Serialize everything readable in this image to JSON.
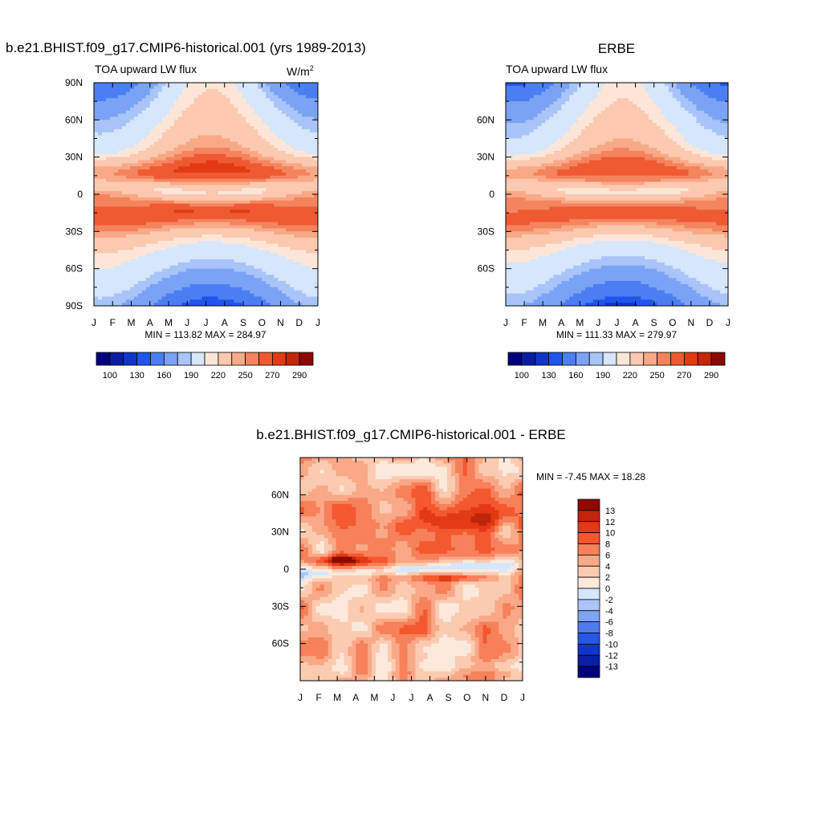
{
  "chart_data": [
    {
      "type": "heatmap",
      "panel": "model",
      "title": "b.e21.BHIST.f09_g17.CMIP6-historical.001 (yrs 1989-2013)",
      "left_label": "TOA upward LW flux",
      "units_base": "W/m",
      "units_exp": "2",
      "min_max": "MIN = 113.82 MAX = 284.97",
      "x_ticks": [
        "J",
        "F",
        "M",
        "A",
        "M",
        "J",
        "J",
        "A",
        "S",
        "O",
        "N",
        "D",
        "J"
      ],
      "y_ticks": [
        "90N",
        "60N",
        "30N",
        "0",
        "30S",
        "60S",
        "90S"
      ],
      "y_range": [
        -90,
        90
      ],
      "colorbar_labels": [
        "100",
        "130",
        "160",
        "190",
        "220",
        "250",
        "270",
        "290"
      ],
      "colorbar_levels": [
        100,
        110,
        130,
        140,
        160,
        180,
        190,
        210,
        220,
        240,
        250,
        260,
        270,
        280,
        290
      ],
      "zonal_mean_profile": [
        {
          "lat": 90,
          "value": 150
        },
        {
          "lat": 60,
          "value": 205
        },
        {
          "lat": 30,
          "value": 250
        },
        {
          "lat": 15,
          "value": 270
        },
        {
          "lat": 5,
          "value": 240
        },
        {
          "lat": -15,
          "value": 270
        },
        {
          "lat": -30,
          "value": 258
        },
        {
          "lat": -60,
          "value": 210
        },
        {
          "lat": -90,
          "value": 130
        }
      ]
    },
    {
      "type": "heatmap",
      "panel": "obs",
      "title": "ERBE",
      "left_label": "TOA upward LW flux",
      "min_max": "MIN = 111.33 MAX = 279.97",
      "x_ticks": [
        "J",
        "F",
        "M",
        "A",
        "M",
        "J",
        "J",
        "A",
        "S",
        "O",
        "N",
        "D",
        "J"
      ],
      "y_ticks": [
        "60N",
        "30N",
        "0",
        "30S",
        "60S"
      ],
      "y_range": [
        -90,
        90
      ],
      "colorbar_labels": [
        "100",
        "130",
        "160",
        "190",
        "220",
        "250",
        "270",
        "290"
      ],
      "colorbar_levels": [
        100,
        110,
        130,
        140,
        160,
        180,
        190,
        210,
        220,
        240,
        250,
        260,
        270,
        280,
        290
      ],
      "zonal_mean_profile": [
        {
          "lat": 90,
          "value": 155
        },
        {
          "lat": 60,
          "value": 205
        },
        {
          "lat": 30,
          "value": 250
        },
        {
          "lat": 15,
          "value": 268
        },
        {
          "lat": 5,
          "value": 245
        },
        {
          "lat": -15,
          "value": 268
        },
        {
          "lat": -30,
          "value": 255
        },
        {
          "lat": -60,
          "value": 210
        },
        {
          "lat": -90,
          "value": 125
        }
      ]
    },
    {
      "type": "heatmap",
      "panel": "difference",
      "title": "b.e21.BHIST.f09_g17.CMIP6-historical.001 - ERBE",
      "min_max": "MIN =  -7.45 MAX =  18.28",
      "x_ticks": [
        "J",
        "F",
        "M",
        "A",
        "M",
        "J",
        "J",
        "A",
        "S",
        "O",
        "N",
        "D",
        "J"
      ],
      "y_ticks": [
        "60N",
        "30N",
        "0",
        "30S",
        "60S"
      ],
      "y_range": [
        -90,
        90
      ],
      "colorbar_labels": [
        "13",
        "12",
        "10",
        "8",
        "6",
        "4",
        "2",
        "0",
        "-2",
        "-4",
        "-6",
        "-8",
        "-10",
        "-12",
        "-13"
      ],
      "colorbar_levels": [
        -13,
        -12,
        -10,
        -8,
        -6,
        -4,
        -2,
        0,
        2,
        4,
        6,
        8,
        10,
        12,
        13
      ]
    }
  ],
  "colors": {
    "abs_palette": [
      "#00007f",
      "#0a1fa0",
      "#0f36c8",
      "#1f55ec",
      "#4a7ef2",
      "#7aa3f5",
      "#a8c4f8",
      "#d6e6fb",
      "#fde6d8",
      "#fbc9b0",
      "#f8a987",
      "#f4845e",
      "#ef5a32",
      "#e23a14",
      "#c3260a",
      "#8c0a00"
    ],
    "diff_palette": [
      "#8c0a00",
      "#c0250a",
      "#e23a14",
      "#f4582f",
      "#f6815b",
      "#f9a987",
      "#fbcbb1",
      "#fde9dc",
      "#d6e6fb",
      "#aac5f7",
      "#7ea4f2",
      "#4e7ced",
      "#2457e3",
      "#0f36c8",
      "#0a20a0",
      "#00007f"
    ]
  }
}
